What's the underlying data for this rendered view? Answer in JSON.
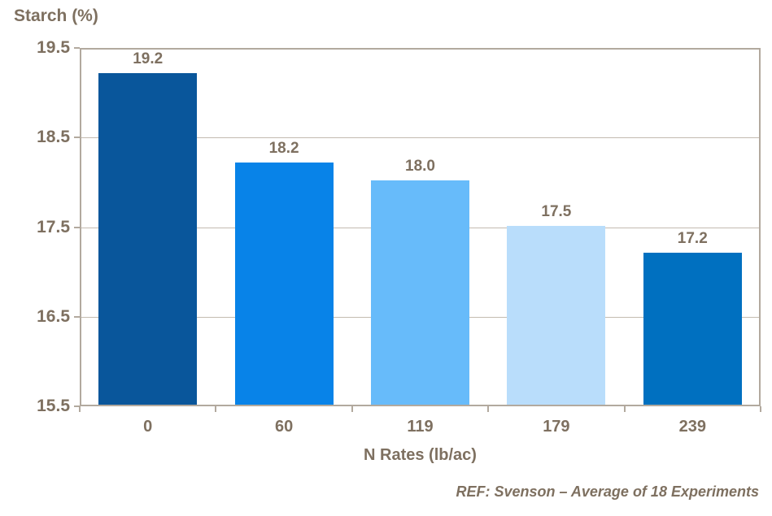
{
  "chart_data": {
    "type": "bar",
    "title": "Starch (%)",
    "xlabel": "N Rates (lb/ac)",
    "ylabel": "Starch (%)",
    "categories": [
      "0",
      "60",
      "119",
      "179",
      "239"
    ],
    "values": [
      19.2,
      18.2,
      18.0,
      17.5,
      17.2
    ],
    "value_labels": [
      "19.2",
      "18.2",
      "18.0",
      "17.5",
      "17.2"
    ],
    "bar_colors": [
      "#09569B",
      "#0883E8",
      "#67BBFA",
      "#B9DDFB",
      "#0070C0"
    ],
    "ylim": [
      15.5,
      19.5
    ],
    "yticks": [
      19.5,
      18.5,
      17.5,
      16.5,
      15.5
    ],
    "ytick_labels": [
      "19.5",
      "18.5",
      "17.5",
      "16.5",
      "15.5"
    ],
    "grid": "horizontal",
    "legend": "none",
    "annotation": "REF: Svenson – Average of 18 Experiments"
  },
  "footer": {
    "ref_text": "REF: Svenson – Average of 18 Experiments"
  },
  "colors": {
    "text": "#7E7060",
    "axis": "#B2A99E",
    "grid": "#C3BBB0",
    "background": "#FFFFFF"
  }
}
